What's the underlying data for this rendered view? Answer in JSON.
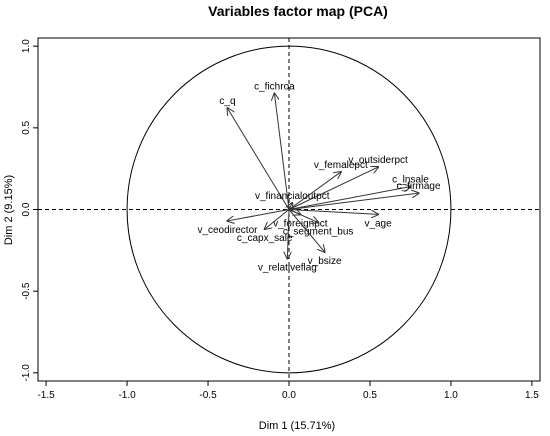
{
  "chart_data": {
    "type": "scatter",
    "title": "Variables factor map (PCA)",
    "xlabel": "Dim 1 (15.71%)",
    "ylabel": "Dim 2 (9.15%)",
    "xlim": [
      -1.55,
      1.55
    ],
    "ylim": [
      -1.05,
      1.05
    ],
    "xticks": [
      -1.5,
      -1.0,
      -0.5,
      0.0,
      0.5,
      1.0,
      1.5
    ],
    "xtick_labels": [
      "-1.5",
      "-1.0",
      "-0.5",
      "0.0",
      "0.5",
      "1.0",
      "1.5"
    ],
    "yticks": [
      -1.0,
      -0.5,
      0.0,
      0.5,
      1.0
    ],
    "ytick_labels": [
      "-1.0",
      "-0.5",
      "0.0",
      "0.5",
      "1.0"
    ],
    "unit_circle": true,
    "reference_lines": {
      "x": 0,
      "y": 0,
      "style": "dashed"
    },
    "grid": false,
    "variables": [
      {
        "name": "c_fichroa",
        "x": -0.09,
        "y": 0.71
      },
      {
        "name": "c_q",
        "x": -0.38,
        "y": 0.62
      },
      {
        "name": "v_femalepct",
        "x": 0.32,
        "y": 0.23
      },
      {
        "name": "v_outsiderpct",
        "x": 0.55,
        "y": 0.26
      },
      {
        "name": "c_lnsale",
        "x": 0.75,
        "y": 0.14
      },
      {
        "name": "v_financialoutpct",
        "x": 0.02,
        "y": 0.04
      },
      {
        "name": "c_firmage",
        "x": 0.8,
        "y": 0.1
      },
      {
        "name": "v_age",
        "x": 0.55,
        "y": -0.03
      },
      {
        "name": "v_ceodirector",
        "x": -0.38,
        "y": -0.07
      },
      {
        "name": "v_foreignpct",
        "x": 0.07,
        "y": -0.03
      },
      {
        "name": "c_capx_sale",
        "x": -0.15,
        "y": -0.12
      },
      {
        "name": "c_segment_bus",
        "x": 0.18,
        "y": -0.08
      },
      {
        "name": "v_bsize",
        "x": 0.22,
        "y": -0.26
      },
      {
        "name": "v_relativeflag",
        "x": -0.01,
        "y": -0.3
      }
    ]
  }
}
